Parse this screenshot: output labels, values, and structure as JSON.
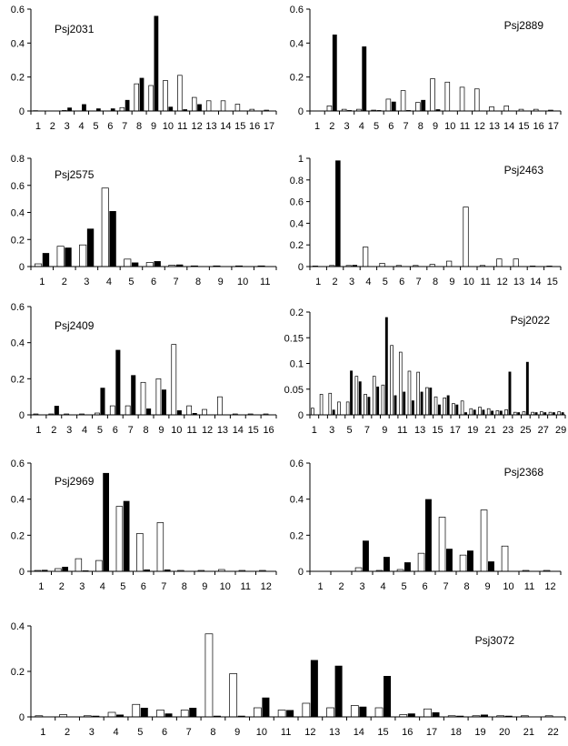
{
  "chart_data": [
    {
      "type": "bar",
      "title": "Psj2031",
      "ylim": [
        0,
        0.6
      ],
      "yticks": [
        "0",
        "0.2",
        "0.4",
        "0.6"
      ],
      "categories": [
        "1",
        "2",
        "3",
        "4",
        "5",
        "6",
        "7",
        "8",
        "9",
        "10",
        "11",
        "12",
        "13",
        "14",
        "15",
        "16",
        "17"
      ],
      "series": [
        {
          "fill": "white",
          "values": [
            0.002,
            0.0,
            0.003,
            0.0,
            0.0,
            0.0,
            0.02,
            0.16,
            0.15,
            0.18,
            0.21,
            0.08,
            0.06,
            0.06,
            0.04,
            0.01,
            0.005
          ]
        },
        {
          "fill": "black",
          "values": [
            0.0,
            0.0,
            0.02,
            0.04,
            0.015,
            0.015,
            0.065,
            0.195,
            0.56,
            0.025,
            0.01,
            0.04,
            0.0,
            0.0,
            0.0,
            0.0,
            0.0
          ]
        }
      ]
    },
    {
      "type": "bar",
      "title": "Psj2889",
      "ylim": [
        0,
        0.6
      ],
      "yticks": [
        "0",
        "0.2",
        "0.4",
        "0.6"
      ],
      "categories": [
        "1",
        "2",
        "3",
        "4",
        "5",
        "6",
        "7",
        "8",
        "9",
        "10",
        "11",
        "12",
        "13",
        "14",
        "15",
        "16",
        "17"
      ],
      "series": [
        {
          "fill": "white",
          "values": [
            0.0,
            0.03,
            0.01,
            0.01,
            0.005,
            0.07,
            0.12,
            0.05,
            0.19,
            0.17,
            0.14,
            0.13,
            0.025,
            0.03,
            0.01,
            0.01,
            0.005
          ]
        },
        {
          "fill": "black",
          "values": [
            0.0,
            0.45,
            0.005,
            0.38,
            0.005,
            0.055,
            0.005,
            0.065,
            0.01,
            0.0,
            0.0,
            0.0,
            0.0,
            0.0,
            0.0,
            0.0,
            0.0
          ]
        }
      ]
    },
    {
      "type": "bar",
      "title": "Psj2575",
      "ylim": [
        0,
        0.8
      ],
      "yticks": [
        "0",
        "0.2",
        "0.4",
        "0.6",
        "0.8"
      ],
      "categories": [
        "1",
        "2",
        "3",
        "4",
        "5",
        "6",
        "7",
        "8",
        "9",
        "10",
        "11"
      ],
      "series": [
        {
          "fill": "white",
          "values": [
            0.02,
            0.15,
            0.16,
            0.58,
            0.055,
            0.03,
            0.01,
            0.005,
            0.005,
            0.005,
            0.005
          ]
        },
        {
          "fill": "black",
          "values": [
            0.1,
            0.14,
            0.28,
            0.41,
            0.03,
            0.04,
            0.015,
            0.0,
            0.0,
            0.0,
            0.0
          ]
        }
      ]
    },
    {
      "type": "bar",
      "title": "Psj2463",
      "ylim": [
        0,
        1
      ],
      "yticks": [
        "0",
        "0.2",
        "0.4",
        "0.6",
        "0.8",
        "1"
      ],
      "categories": [
        "1",
        "2",
        "3",
        "4",
        "5",
        "6",
        "7",
        "8",
        "9",
        "10",
        "11",
        "12",
        "13",
        "14",
        "15"
      ],
      "series": [
        {
          "fill": "white",
          "values": [
            0.005,
            0.01,
            0.01,
            0.18,
            0.03,
            0.01,
            0.01,
            0.02,
            0.05,
            0.55,
            0.01,
            0.07,
            0.07,
            0.005,
            0.005
          ]
        },
        {
          "fill": "black",
          "values": [
            0.0,
            0.98,
            0.015,
            0.0,
            0.0,
            0.0,
            0.0,
            0.0,
            0.0,
            0.0,
            0.0,
            0.0,
            0.0,
            0.0,
            0.0
          ]
        }
      ]
    },
    {
      "type": "bar",
      "title": "Psj2409",
      "ylim": [
        0,
        0.6
      ],
      "yticks": [
        "0",
        "0.2",
        "0.4",
        "0.6"
      ],
      "categories": [
        "1",
        "2",
        "3",
        "4",
        "5",
        "6",
        "7",
        "8",
        "9",
        "10",
        "11",
        "12",
        "13",
        "14",
        "15",
        "16"
      ],
      "series": [
        {
          "fill": "white",
          "values": [
            0.005,
            0.005,
            0.005,
            0.005,
            0.01,
            0.05,
            0.05,
            0.18,
            0.2,
            0.39,
            0.05,
            0.03,
            0.1,
            0.005,
            0.005,
            0.005
          ]
        },
        {
          "fill": "black",
          "values": [
            0.0,
            0.05,
            0.0,
            0.0,
            0.15,
            0.36,
            0.22,
            0.035,
            0.14,
            0.025,
            0.01,
            0.0,
            0.0,
            0.0,
            0.0,
            0.0
          ]
        }
      ]
    },
    {
      "type": "bar",
      "title": "Psj2022",
      "ylim": [
        0,
        0.2
      ],
      "yticks": [
        "0",
        "0.05",
        "0.1",
        "0.15",
        "0.2"
      ],
      "xticklabels": [
        "1",
        "",
        "3",
        "",
        "5",
        "",
        "7",
        "",
        "9",
        "",
        "11",
        "",
        "13",
        "",
        "15",
        "",
        "17",
        "",
        "19",
        "",
        "21",
        "",
        "23",
        "",
        "25",
        "",
        "27",
        "",
        "29"
      ],
      "categories": [
        "1",
        "2",
        "3",
        "4",
        "5",
        "6",
        "7",
        "8",
        "9",
        "10",
        "11",
        "12",
        "13",
        "14",
        "15",
        "16",
        "17",
        "18",
        "19",
        "20",
        "21",
        "22",
        "23",
        "24",
        "25",
        "26",
        "27",
        "28",
        "29"
      ],
      "series": [
        {
          "fill": "white",
          "values": [
            0.013,
            0.04,
            0.042,
            0.025,
            0.025,
            0.075,
            0.04,
            0.075,
            0.058,
            0.135,
            0.122,
            0.085,
            0.083,
            0.053,
            0.035,
            0.033,
            0.022,
            0.027,
            0.012,
            0.015,
            0.012,
            0.008,
            0.01,
            0.005,
            0.006,
            0.005,
            0.006,
            0.005,
            0.006
          ]
        },
        {
          "fill": "black",
          "values": [
            0.0,
            0.0,
            0.01,
            0.0,
            0.086,
            0.065,
            0.035,
            0.055,
            0.19,
            0.038,
            0.045,
            0.028,
            0.045,
            0.053,
            0.02,
            0.038,
            0.02,
            0.005,
            0.01,
            0.01,
            0.008,
            0.008,
            0.084,
            0.005,
            0.103,
            0.005,
            0.005,
            0.005,
            0.005
          ]
        }
      ]
    },
    {
      "type": "bar",
      "title": "Psj2969",
      "ylim": [
        0,
        0.6
      ],
      "yticks": [
        "0",
        "0.2",
        "0.4",
        "0.6"
      ],
      "categories": [
        "1",
        "2",
        "3",
        "4",
        "5",
        "6",
        "7",
        "8",
        "9",
        "10",
        "11",
        "12"
      ],
      "series": [
        {
          "fill": "white",
          "values": [
            0.005,
            0.015,
            0.07,
            0.06,
            0.36,
            0.21,
            0.27,
            0.005,
            0.005,
            0.01,
            0.005,
            0.005
          ]
        },
        {
          "fill": "black",
          "values": [
            0.008,
            0.025,
            0.005,
            0.545,
            0.39,
            0.01,
            0.01,
            0.0,
            0.0,
            0.0,
            0.0,
            0.0
          ]
        }
      ]
    },
    {
      "type": "bar",
      "title": "Psj2368",
      "ylim": [
        0,
        0.6
      ],
      "yticks": [
        "0",
        "0.2",
        "0.4",
        "0.6"
      ],
      "categories": [
        "1",
        "2",
        "3",
        "4",
        "5",
        "6",
        "7",
        "8",
        "9",
        "10",
        "11",
        "12"
      ],
      "series": [
        {
          "fill": "white",
          "values": [
            0.0,
            0.0,
            0.02,
            0.005,
            0.01,
            0.1,
            0.3,
            0.09,
            0.34,
            0.14,
            0.005,
            0.005
          ]
        },
        {
          "fill": "black",
          "values": [
            0.0,
            0.0,
            0.17,
            0.08,
            0.05,
            0.4,
            0.125,
            0.115,
            0.055,
            0.0,
            0.0,
            0.0
          ]
        }
      ]
    },
    {
      "type": "bar",
      "title": "Psj3072",
      "ylim": [
        0,
        0.4
      ],
      "yticks": [
        "0",
        "0.2",
        "0.4"
      ],
      "categories": [
        "1",
        "2",
        "3",
        "4",
        "5",
        "6",
        "7",
        "8",
        "9",
        "10",
        "11",
        "12",
        "13",
        "14",
        "15",
        "16",
        "17",
        "18",
        "19",
        "20",
        "21",
        "22"
      ],
      "series": [
        {
          "fill": "white",
          "values": [
            0.005,
            0.01,
            0.005,
            0.02,
            0.055,
            0.03,
            0.03,
            0.365,
            0.19,
            0.04,
            0.03,
            0.06,
            0.04,
            0.05,
            0.04,
            0.01,
            0.035,
            0.005,
            0.005,
            0.005,
            0.005,
            0.005
          ]
        },
        {
          "fill": "black",
          "values": [
            0.0,
            0.0,
            0.005,
            0.01,
            0.04,
            0.015,
            0.04,
            0.005,
            0.005,
            0.085,
            0.03,
            0.25,
            0.225,
            0.045,
            0.18,
            0.015,
            0.02,
            0.005,
            0.01,
            0.005,
            0.0,
            0.0
          ]
        }
      ]
    }
  ]
}
